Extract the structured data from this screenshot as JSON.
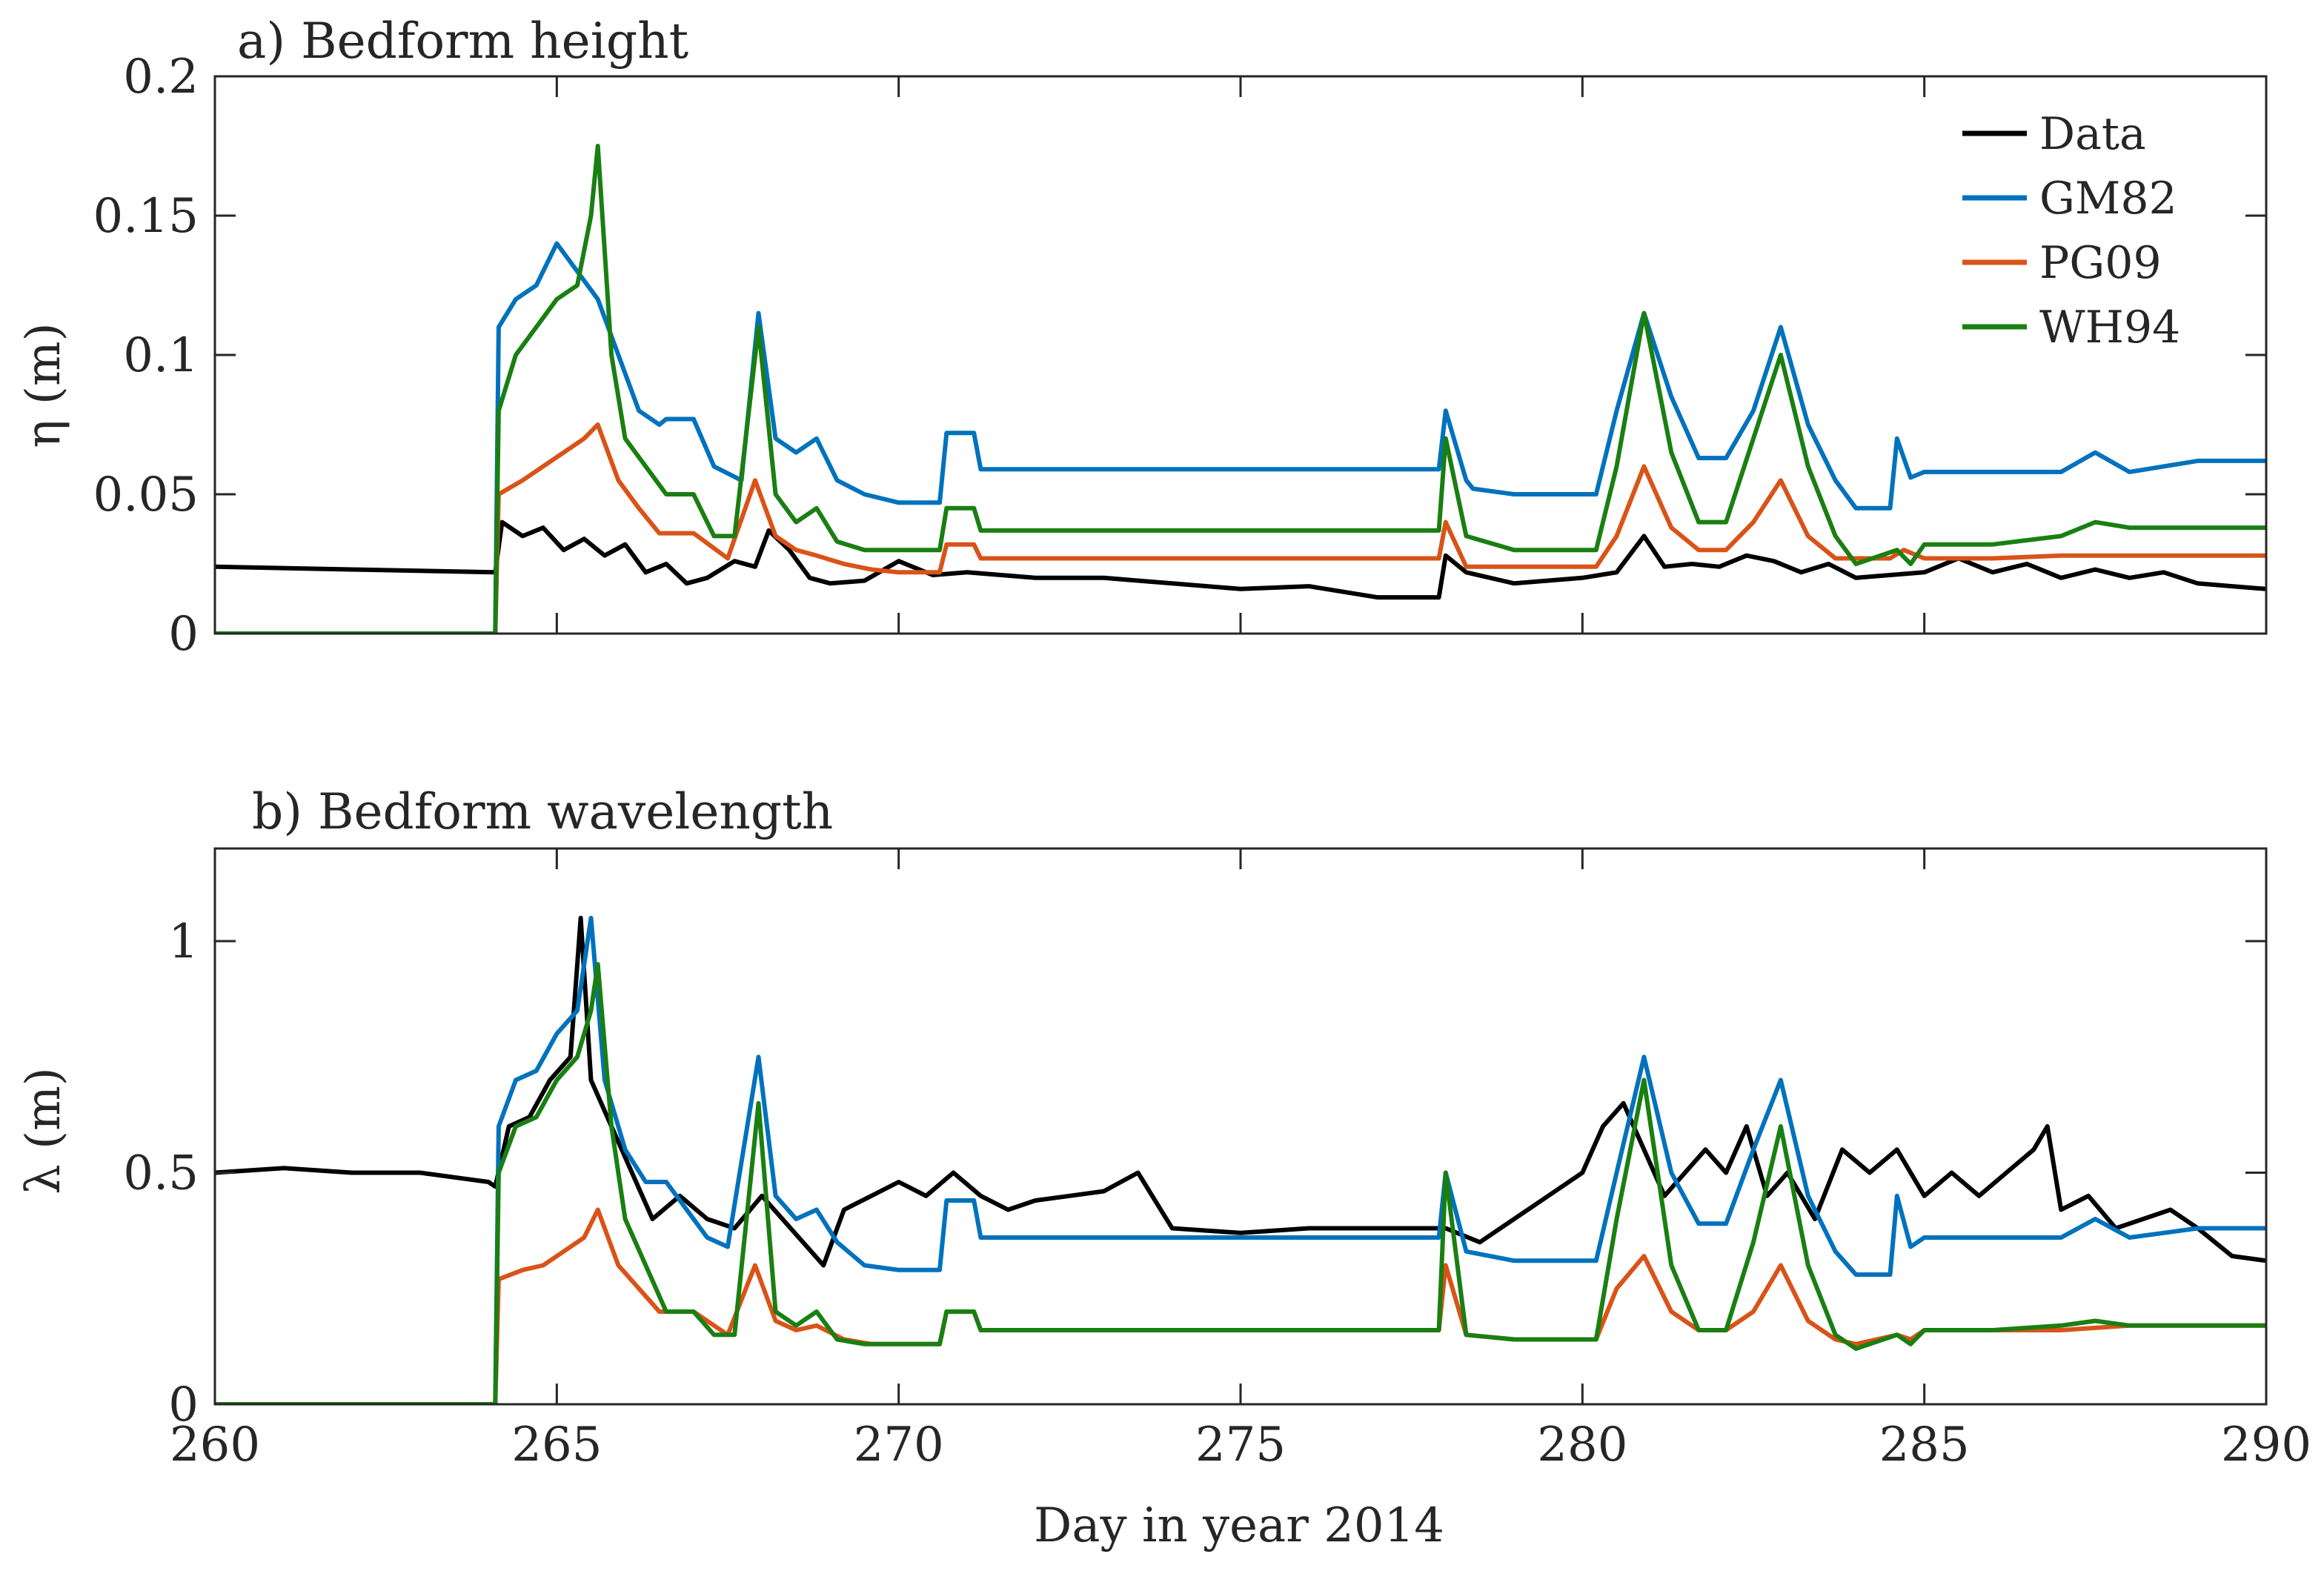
{
  "figure": {
    "xlabel": "Day in year 2014",
    "legend_title": "",
    "colors": {
      "Data": "#000000",
      "GM82": "#0072BD",
      "PG09": "#D95319",
      "WH94": "#1A7F12"
    }
  },
  "chart_data": [
    {
      "type": "line",
      "panel": "a",
      "title": "a) Bedform height",
      "xlabel": "",
      "ylabel": "η (m)",
      "xlim": [
        260,
        290
      ],
      "ylim": [
        0,
        0.2
      ],
      "xticks": [
        260,
        265,
        270,
        275,
        280,
        285,
        290
      ],
      "xtick_labels": [
        "",
        "",
        "",
        "",
        "",
        "",
        ""
      ],
      "yticks": [
        0,
        0.05,
        0.1,
        0.15,
        0.2
      ],
      "ytick_labels": [
        "0",
        "0.05",
        "0.1",
        "0.15",
        "0.2"
      ],
      "legend": {
        "entries": [
          "Data",
          "GM82",
          "PG09",
          "WH94"
        ],
        "location": "top-right"
      },
      "series": [
        {
          "name": "Data",
          "color": "#000000",
          "x": [
            260,
            262,
            264.1,
            264.2,
            264.5,
            264.8,
            265.1,
            265.4,
            265.7,
            266.0,
            266.3,
            266.6,
            266.9,
            267.2,
            267.6,
            267.9,
            268.1,
            268.4,
            268.7,
            269.0,
            269.5,
            270.0,
            270.5,
            271.0,
            272.0,
            273.0,
            274.0,
            275.0,
            276.0,
            277.0,
            277.9,
            278.0,
            278.3,
            279.0,
            280.0,
            280.5,
            280.9,
            281.2,
            281.6,
            282.0,
            282.4,
            282.8,
            283.2,
            283.6,
            284.0,
            284.5,
            285.0,
            285.5,
            286.0,
            286.5,
            287.0,
            287.5,
            288.0,
            288.5,
            289.0,
            289.5,
            290.0
          ],
          "y": [
            0.024,
            0.023,
            0.022,
            0.04,
            0.035,
            0.038,
            0.03,
            0.034,
            0.028,
            0.032,
            0.022,
            0.025,
            0.018,
            0.02,
            0.026,
            0.024,
            0.037,
            0.03,
            0.02,
            0.018,
            0.019,
            0.026,
            0.021,
            0.022,
            0.02,
            0.02,
            0.018,
            0.016,
            0.017,
            0.013,
            0.013,
            0.028,
            0.022,
            0.018,
            0.02,
            0.022,
            0.035,
            0.024,
            0.025,
            0.024,
            0.028,
            0.026,
            0.022,
            0.025,
            0.02,
            0.021,
            0.022,
            0.027,
            0.022,
            0.025,
            0.02,
            0.023,
            0.02,
            0.022,
            0.018,
            0.017,
            0.016
          ]
        },
        {
          "name": "GM82",
          "color": "#0072BD",
          "x": [
            260,
            264.1,
            264.15,
            264.4,
            264.7,
            265.0,
            265.3,
            265.6,
            265.9,
            266.2,
            266.5,
            266.6,
            267.0,
            267.3,
            267.7,
            267.95,
            268.2,
            268.5,
            268.8,
            269.1,
            269.5,
            270.0,
            270.6,
            270.7,
            271.1,
            271.2,
            272.0,
            274.0,
            276.0,
            277.0,
            277.9,
            278.0,
            278.3,
            278.4,
            279.0,
            280.2,
            280.5,
            280.9,
            281.3,
            281.7,
            282.1,
            282.5,
            282.9,
            283.3,
            283.7,
            284.0,
            284.5,
            284.6,
            284.8,
            285.0,
            286.0,
            287.0,
            287.5,
            288.0,
            288.5,
            289.0,
            290.0
          ],
          "y": [
            0,
            0,
            0.11,
            0.12,
            0.125,
            0.14,
            0.13,
            0.12,
            0.1,
            0.08,
            0.075,
            0.077,
            0.077,
            0.06,
            0.055,
            0.115,
            0.07,
            0.065,
            0.07,
            0.055,
            0.05,
            0.047,
            0.047,
            0.072,
            0.072,
            0.059,
            0.059,
            0.059,
            0.059,
            0.059,
            0.059,
            0.08,
            0.055,
            0.052,
            0.05,
            0.05,
            0.08,
            0.115,
            0.085,
            0.063,
            0.063,
            0.08,
            0.11,
            0.075,
            0.055,
            0.045,
            0.045,
            0.07,
            0.056,
            0.058,
            0.058,
            0.058,
            0.065,
            0.058,
            0.06,
            0.062,
            0.062
          ]
        },
        {
          "name": "PG09",
          "color": "#D95319",
          "x": [
            260,
            264.1,
            264.15,
            264.5,
            264.8,
            265.1,
            265.4,
            265.6,
            265.9,
            266.2,
            266.5,
            267.0,
            267.5,
            267.9,
            268.2,
            268.5,
            268.8,
            269.2,
            269.6,
            270.0,
            270.6,
            270.7,
            271.1,
            271.2,
            272.0,
            274.0,
            276.0,
            277.9,
            278.0,
            278.3,
            279.0,
            280.2,
            280.5,
            280.9,
            281.3,
            281.7,
            282.1,
            282.5,
            282.9,
            283.3,
            283.7,
            284.0,
            284.5,
            284.7,
            285.0,
            286.0,
            287.0,
            288.0,
            289.0,
            290.0
          ],
          "y": [
            0,
            0,
            0.05,
            0.055,
            0.06,
            0.065,
            0.07,
            0.075,
            0.055,
            0.045,
            0.036,
            0.036,
            0.027,
            0.055,
            0.035,
            0.03,
            0.028,
            0.025,
            0.023,
            0.022,
            0.022,
            0.032,
            0.032,
            0.027,
            0.027,
            0.027,
            0.027,
            0.027,
            0.04,
            0.024,
            0.024,
            0.024,
            0.035,
            0.06,
            0.038,
            0.03,
            0.03,
            0.04,
            0.055,
            0.035,
            0.027,
            0.027,
            0.027,
            0.03,
            0.027,
            0.027,
            0.028,
            0.028,
            0.028,
            0.028
          ]
        },
        {
          "name": "WH94",
          "color": "#1A7F12",
          "x": [
            260,
            264.1,
            264.15,
            264.4,
            264.7,
            265.0,
            265.3,
            265.5,
            265.6,
            265.8,
            266.0,
            266.3,
            266.6,
            267.0,
            267.3,
            267.6,
            267.95,
            268.2,
            268.5,
            268.8,
            269.1,
            269.5,
            270.0,
            270.6,
            270.7,
            271.1,
            271.2,
            272.0,
            274.0,
            276.0,
            277.9,
            278.0,
            278.3,
            279.0,
            280.2,
            280.5,
            280.9,
            281.3,
            281.7,
            282.1,
            282.5,
            282.9,
            283.3,
            283.7,
            284.0,
            284.6,
            284.8,
            285.0,
            286.0,
            287.0,
            287.5,
            288.0,
            289.0,
            290.0
          ],
          "y": [
            0,
            0,
            0.08,
            0.1,
            0.11,
            0.12,
            0.125,
            0.15,
            0.175,
            0.1,
            0.07,
            0.06,
            0.05,
            0.05,
            0.035,
            0.035,
            0.11,
            0.05,
            0.04,
            0.045,
            0.033,
            0.03,
            0.03,
            0.03,
            0.045,
            0.045,
            0.037,
            0.037,
            0.037,
            0.037,
            0.037,
            0.07,
            0.035,
            0.03,
            0.03,
            0.06,
            0.115,
            0.065,
            0.04,
            0.04,
            0.07,
            0.1,
            0.06,
            0.035,
            0.025,
            0.03,
            0.025,
            0.032,
            0.032,
            0.035,
            0.04,
            0.038,
            0.038,
            0.038
          ]
        }
      ]
    },
    {
      "type": "line",
      "panel": "b",
      "title": "b) Bedform wavelength",
      "xlabel": "Day in year 2014",
      "ylabel": "λ (m)",
      "xlim": [
        260,
        290
      ],
      "ylim": [
        0,
        1.2
      ],
      "xticks": [
        260,
        265,
        270,
        275,
        280,
        285,
        290
      ],
      "xtick_labels": [
        "260",
        "265",
        "270",
        "275",
        "280",
        "285",
        "290"
      ],
      "yticks": [
        0,
        0.5,
        1
      ],
      "ytick_labels": [
        "0",
        "0.5",
        "1"
      ],
      "series": [
        {
          "name": "Data",
          "color": "#000000",
          "x": [
            260,
            261,
            262,
            263,
            264,
            264.1,
            264.3,
            264.6,
            264.9,
            265.2,
            265.35,
            265.5,
            265.8,
            266.1,
            266.4,
            266.8,
            267.2,
            267.6,
            268.0,
            268.3,
            268.6,
            268.9,
            269.2,
            269.6,
            270.0,
            270.4,
            270.8,
            271.2,
            271.6,
            272.0,
            272.5,
            273.0,
            273.5,
            274.0,
            275.0,
            276.0,
            277.0,
            278.0,
            278.5,
            279.0,
            279.5,
            280.0,
            280.3,
            280.6,
            280.9,
            281.2,
            281.5,
            281.8,
            282.1,
            282.4,
            282.7,
            283.0,
            283.4,
            283.8,
            284.2,
            284.6,
            285.0,
            285.4,
            285.8,
            286.2,
            286.6,
            286.8,
            287.0,
            287.4,
            287.8,
            288.2,
            288.6,
            289.0,
            289.5,
            290.0
          ],
          "y": [
            0.5,
            0.51,
            0.5,
            0.5,
            0.48,
            0.47,
            0.6,
            0.62,
            0.7,
            0.75,
            1.05,
            0.7,
            0.6,
            0.5,
            0.4,
            0.45,
            0.4,
            0.38,
            0.45,
            0.4,
            0.35,
            0.3,
            0.42,
            0.45,
            0.48,
            0.45,
            0.5,
            0.45,
            0.42,
            0.44,
            0.45,
            0.46,
            0.5,
            0.38,
            0.37,
            0.38,
            0.38,
            0.38,
            0.35,
            0.4,
            0.45,
            0.5,
            0.6,
            0.65,
            0.55,
            0.45,
            0.5,
            0.55,
            0.5,
            0.6,
            0.45,
            0.5,
            0.4,
            0.55,
            0.5,
            0.55,
            0.45,
            0.5,
            0.45,
            0.5,
            0.55,
            0.6,
            0.42,
            0.45,
            0.38,
            0.4,
            0.42,
            0.38,
            0.32,
            0.31
          ]
        },
        {
          "name": "GM82",
          "color": "#0072BD",
          "x": [
            260,
            264.1,
            264.15,
            264.4,
            264.7,
            265.0,
            265.3,
            265.5,
            265.7,
            266.0,
            266.3,
            266.6,
            267.2,
            267.5,
            267.95,
            268.2,
            268.5,
            268.8,
            269.1,
            269.5,
            270.0,
            270.6,
            270.7,
            271.1,
            271.2,
            272.0,
            274.0,
            276.0,
            277.9,
            278.0,
            278.3,
            279.0,
            280.2,
            280.5,
            280.9,
            281.3,
            281.7,
            282.1,
            282.5,
            282.9,
            283.3,
            283.7,
            284.0,
            284.5,
            284.6,
            284.8,
            285.0,
            286.0,
            287.0,
            287.5,
            288.0,
            288.5,
            289.0,
            290.0
          ],
          "y": [
            0,
            0,
            0.6,
            0.7,
            0.72,
            0.8,
            0.85,
            1.05,
            0.7,
            0.55,
            0.48,
            0.48,
            0.36,
            0.34,
            0.75,
            0.45,
            0.4,
            0.42,
            0.35,
            0.3,
            0.29,
            0.29,
            0.44,
            0.44,
            0.36,
            0.36,
            0.36,
            0.36,
            0.36,
            0.5,
            0.33,
            0.31,
            0.31,
            0.5,
            0.75,
            0.5,
            0.39,
            0.39,
            0.55,
            0.7,
            0.45,
            0.33,
            0.28,
            0.28,
            0.45,
            0.34,
            0.36,
            0.36,
            0.36,
            0.4,
            0.36,
            0.37,
            0.38,
            0.38
          ]
        },
        {
          "name": "PG09",
          "color": "#D95319",
          "x": [
            260,
            264.1,
            264.15,
            264.5,
            264.8,
            265.1,
            265.4,
            265.6,
            265.9,
            266.2,
            266.5,
            267.0,
            267.5,
            267.9,
            268.2,
            268.5,
            268.8,
            269.2,
            269.6,
            270.0,
            270.6,
            270.7,
            271.1,
            271.2,
            272.0,
            274.0,
            276.0,
            277.9,
            278.0,
            278.3,
            279.0,
            280.2,
            280.5,
            280.9,
            281.3,
            281.7,
            282.1,
            282.5,
            282.9,
            283.3,
            283.7,
            284.0,
            284.6,
            284.8,
            285.0,
            286.0,
            287.0,
            288.0,
            289.0,
            290.0
          ],
          "y": [
            0,
            0,
            0.27,
            0.29,
            0.3,
            0.33,
            0.36,
            0.42,
            0.3,
            0.25,
            0.2,
            0.2,
            0.15,
            0.3,
            0.18,
            0.16,
            0.17,
            0.14,
            0.13,
            0.13,
            0.13,
            0.2,
            0.2,
            0.16,
            0.16,
            0.16,
            0.16,
            0.16,
            0.3,
            0.15,
            0.14,
            0.14,
            0.25,
            0.32,
            0.2,
            0.16,
            0.16,
            0.2,
            0.3,
            0.18,
            0.14,
            0.13,
            0.15,
            0.14,
            0.16,
            0.16,
            0.16,
            0.17,
            0.17,
            0.17
          ]
        },
        {
          "name": "WH94",
          "color": "#1A7F12",
          "x": [
            260,
            264.1,
            264.15,
            264.4,
            264.7,
            265.0,
            265.3,
            265.5,
            265.6,
            265.8,
            266.0,
            266.3,
            266.6,
            267.0,
            267.3,
            267.6,
            267.95,
            268.2,
            268.5,
            268.8,
            269.1,
            269.5,
            270.0,
            270.6,
            270.7,
            271.1,
            271.2,
            272.0,
            274.0,
            276.0,
            277.9,
            278.0,
            278.3,
            279.0,
            280.2,
            280.5,
            280.9,
            281.3,
            281.7,
            282.1,
            282.5,
            282.9,
            283.3,
            283.7,
            284.0,
            284.6,
            284.8,
            285.0,
            286.0,
            287.0,
            287.5,
            288.0,
            289.0,
            290.0
          ],
          "y": [
            0,
            0,
            0.5,
            0.6,
            0.62,
            0.7,
            0.75,
            0.85,
            0.95,
            0.6,
            0.4,
            0.3,
            0.2,
            0.2,
            0.15,
            0.15,
            0.65,
            0.2,
            0.17,
            0.2,
            0.14,
            0.13,
            0.13,
            0.13,
            0.2,
            0.2,
            0.16,
            0.16,
            0.16,
            0.16,
            0.16,
            0.5,
            0.15,
            0.14,
            0.14,
            0.4,
            0.7,
            0.3,
            0.16,
            0.16,
            0.35,
            0.6,
            0.3,
            0.15,
            0.12,
            0.15,
            0.13,
            0.16,
            0.16,
            0.17,
            0.18,
            0.17,
            0.17,
            0.17
          ]
        }
      ]
    }
  ]
}
